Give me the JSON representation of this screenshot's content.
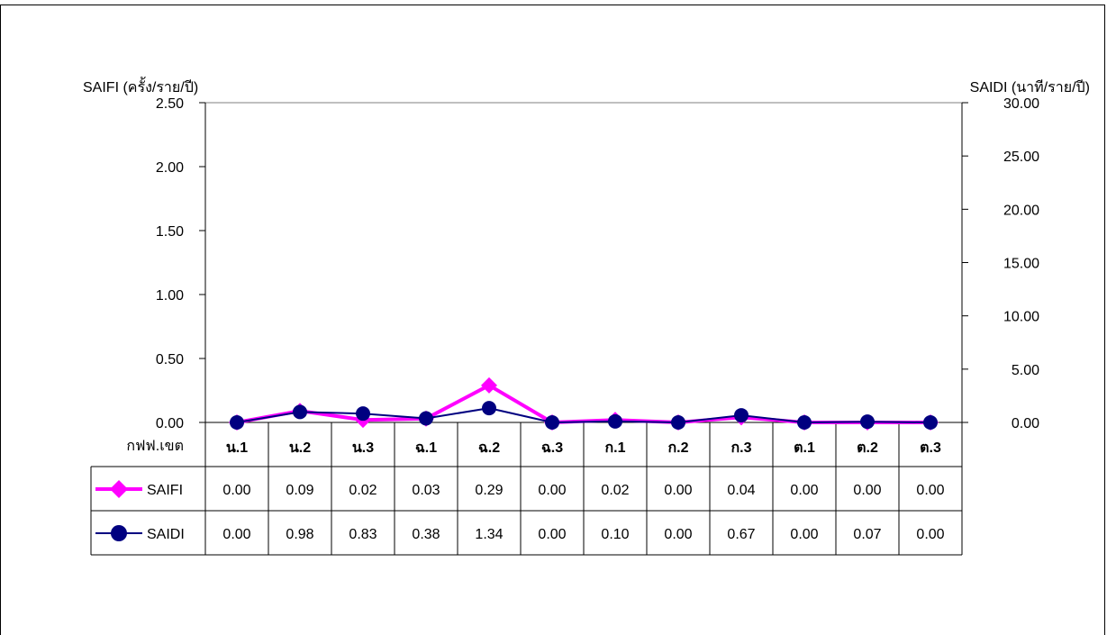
{
  "chart_data": {
    "type": "line",
    "categories_label": "กฟฟ.เขต",
    "categories": [
      "น.1",
      "น.2",
      "น.3",
      "ฉ.1",
      "ฉ.2",
      "ฉ.3",
      "ก.1",
      "ก.2",
      "ก.3",
      "ต.1",
      "ต.2",
      "ต.3"
    ],
    "y_left": {
      "label": "SAIFI (ครั้ง/ราย/ปี)",
      "min": 0,
      "max": 2.5,
      "ticks": [
        "0.00",
        "0.50",
        "1.00",
        "1.50",
        "2.00",
        "2.50"
      ]
    },
    "y_right": {
      "label": "SAIDI (นาที/ราย/ปี)",
      "min": 0,
      "max": 30,
      "ticks": [
        "0.00",
        "5.00",
        "10.00",
        "15.00",
        "20.00",
        "25.00",
        "30.00"
      ]
    },
    "series": [
      {
        "name": "SAIFI",
        "axis": "left",
        "color": "#ff00ff",
        "marker": "diamond",
        "values": [
          0.0,
          0.09,
          0.02,
          0.03,
          0.29,
          0.0,
          0.02,
          0.0,
          0.04,
          0.0,
          0.0,
          0.0
        ],
        "labels": [
          "0.00",
          "0.09",
          "0.02",
          "0.03",
          "0.29",
          "0.00",
          "0.02",
          "0.00",
          "0.04",
          "0.00",
          "0.00",
          "0.00"
        ]
      },
      {
        "name": "SAIDI",
        "axis": "right",
        "color": "#000080",
        "marker": "circle",
        "values": [
          0.0,
          0.98,
          0.83,
          0.38,
          1.34,
          0.0,
          0.1,
          0.0,
          0.67,
          0.0,
          0.07,
          0.0
        ],
        "labels": [
          "0.00",
          "0.98",
          "0.83",
          "0.38",
          "1.34",
          "0.00",
          "0.10",
          "0.00",
          "0.67",
          "0.00",
          "0.07",
          "0.00"
        ]
      }
    ],
    "grid": false,
    "legend": "data-table-below"
  }
}
